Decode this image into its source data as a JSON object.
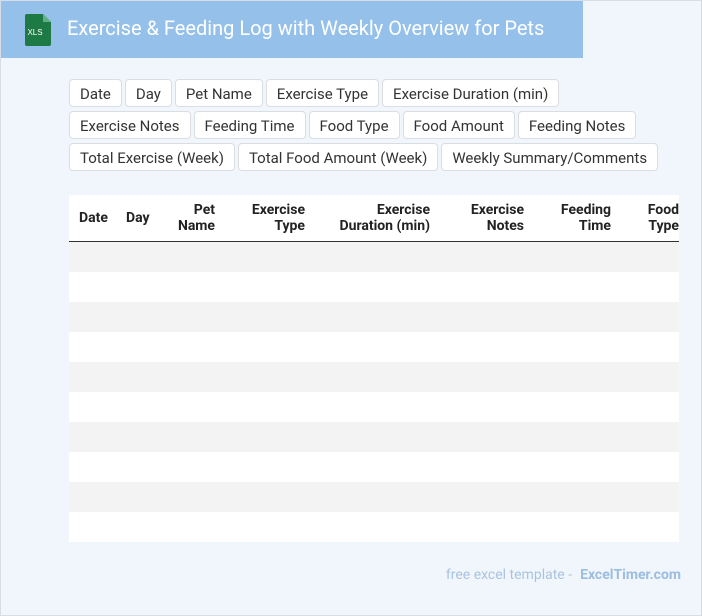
{
  "header": {
    "icon_label": "XLS",
    "title": "Exercise & Feeding Log with Weekly Overview for Pets"
  },
  "fields": [
    "Date",
    "Day",
    "Pet Name",
    "Exercise Type",
    "Exercise Duration (min)",
    "Exercise Notes",
    "Feeding Time",
    "Food Type",
    "Food Amount",
    "Feeding Notes",
    "Total Exercise (Week)",
    "Total Food Amount (Week)",
    "Weekly Summary/Comments"
  ],
  "table": {
    "columns": [
      "Date",
      "Day",
      "Pet Name",
      "Exercise Type",
      "Exercise Duration (min)",
      "Exercise Notes",
      "Feeding Time",
      "Food Type"
    ]
  },
  "footer": {
    "text": "free excel template -",
    "link": "ExcelTimer.com"
  }
}
